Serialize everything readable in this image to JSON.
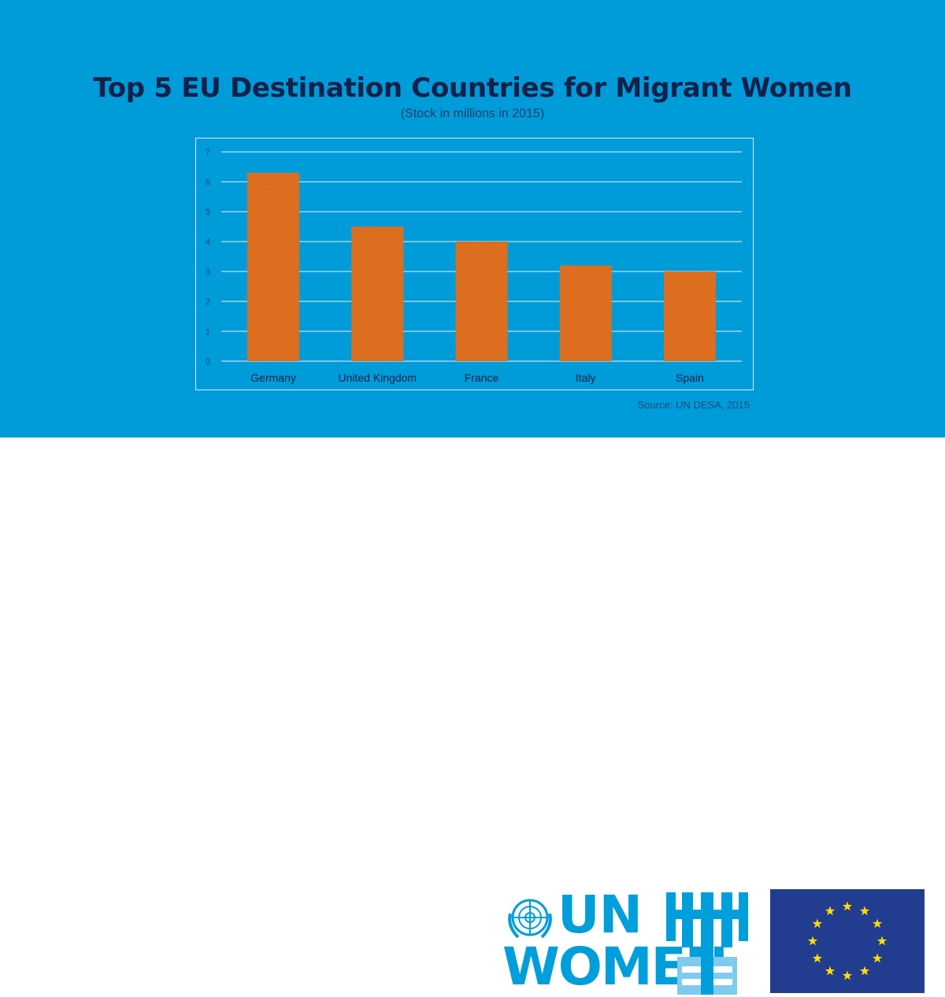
{
  "header": {
    "title": "Top 5 EU Destination Countries for Migrant Women",
    "subtitle": "(Stock in millions in 2015)"
  },
  "source": "Source: UN DESA, 2015",
  "logos": {
    "un_women_line1": "UN",
    "un_women_line2": "WOMEN",
    "eu_flag": "eu-flag-icon"
  },
  "colors": {
    "background": "#009bd9",
    "bar": "#e07021",
    "title": "#13214a",
    "un_blue": "#009edb",
    "eu_blue": "#223d8f",
    "eu_star": "#ffdd00"
  },
  "chart_data": {
    "type": "bar",
    "title": "Top 5 EU Destination Countries for Migrant Women",
    "subtitle": "(Stock in millions in 2015)",
    "categories": [
      "Germany",
      "United Kingdom",
      "France",
      "Italy",
      "Spain"
    ],
    "values": [
      6.3,
      4.5,
      4.0,
      3.2,
      3.0
    ],
    "xlabel": "",
    "ylabel": "",
    "ylim": [
      0,
      7
    ],
    "yticks": [
      "0",
      "1",
      "2",
      "3",
      "4",
      "5",
      "6",
      "7"
    ],
    "grid": true,
    "legend": "none"
  }
}
